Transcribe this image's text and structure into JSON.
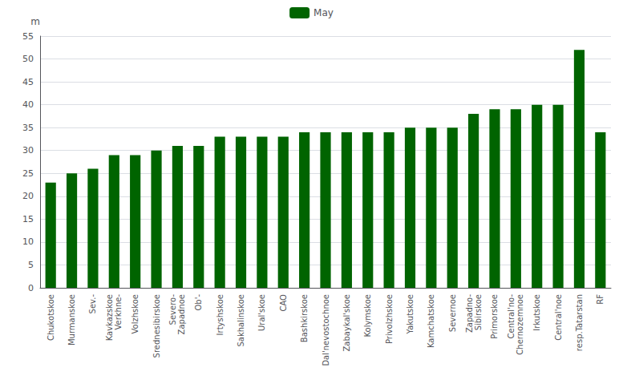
{
  "chart_data": {
    "type": "bar",
    "categories": [
      "Chukotskoe",
      "Murmanskoe",
      "Sev.-",
      "Kavkazskoe\nVerkhne-",
      "Volzhskoe",
      "Srednesibirskoe",
      "Severo-\nZapadnoe",
      "Ob'-",
      "Irtyshskoe",
      "Sakhalinskoe",
      "Ural'skoe",
      "CAO",
      "Bashkirskoe",
      "Dal'nevostochnoe",
      "Zabaykal'skoe",
      "Kolymskoe",
      "Privolzhskoe",
      "Yakutskoe",
      "Kamchatskoe",
      "Severnoe",
      "Zapadno-\nSibirskoe",
      "Primorskoe",
      "Central'no-\nChernozemnoe",
      "Irkutskoe",
      "Central'noe",
      "resp.Tatarstan",
      "RF"
    ],
    "series": [
      {
        "name": "May",
        "color": "#006400",
        "values": [
          23,
          25,
          26,
          29,
          29,
          30,
          31,
          31,
          33,
          33,
          33,
          33,
          34,
          34,
          34,
          34,
          34,
          35,
          35,
          35,
          38,
          39,
          39,
          40,
          40,
          52,
          34
        ]
      }
    ],
    "ylabel": "m",
    "ylim": [
      0,
      55
    ],
    "yticks": [
      0,
      5,
      10,
      15,
      20,
      25,
      30,
      35,
      40,
      45,
      50,
      55
    ],
    "grid": true,
    "legend": "top"
  }
}
